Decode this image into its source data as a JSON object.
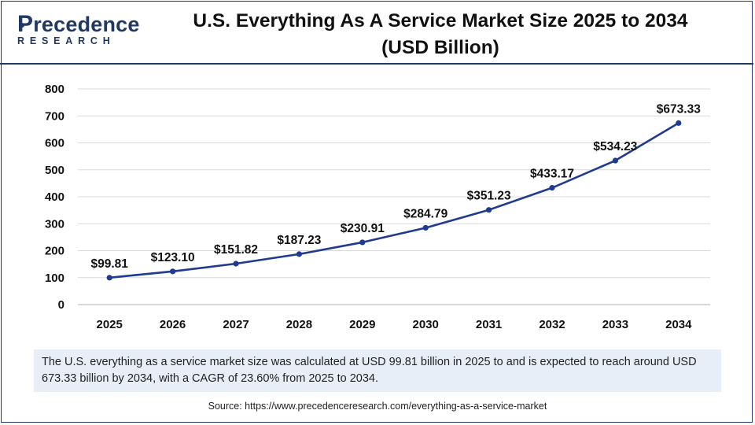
{
  "brand": {
    "name_initial": "P",
    "name_rest": "recedence",
    "subtitle": "RESEARCH"
  },
  "chart_data": {
    "type": "line",
    "title": "U.S. Everything As A Service Market Size 2025 to 2034",
    "title_unit": "(USD Billion)",
    "xlabel": "",
    "ylabel": "",
    "categories": [
      "2025",
      "2026",
      "2027",
      "2028",
      "2029",
      "2030",
      "2031",
      "2032",
      "2033",
      "2034"
    ],
    "series": [
      {
        "name": "Market Size (USD Billion)",
        "values": [
          99.81,
          123.1,
          151.82,
          187.23,
          230.91,
          284.79,
          351.23,
          433.17,
          534.23,
          673.33
        ],
        "labels": [
          "$99.81",
          "$123.10",
          "$151.82",
          "$187.23",
          "$230.91",
          "$284.79",
          "$351.23",
          "$433.17",
          "$534.23",
          "$673.33"
        ]
      }
    ],
    "ylim": [
      0,
      800
    ],
    "yticks": [
      0,
      100,
      200,
      300,
      400,
      500,
      600,
      700,
      800
    ],
    "grid": true,
    "colors": {
      "line": "#1f3a93",
      "grid": "#d9d9d9",
      "axis": "#bfbfbf"
    }
  },
  "caption": "The U.S. everything as a service market size was calculated at USD 99.81 billion in 2025 to and is expected to reach around USD 673.33 billion by 2034, with a CAGR of 23.60% from 2025 to 2034.",
  "source": "Source: https://www.precedenceresearch.com/everything-as-a-service-market"
}
